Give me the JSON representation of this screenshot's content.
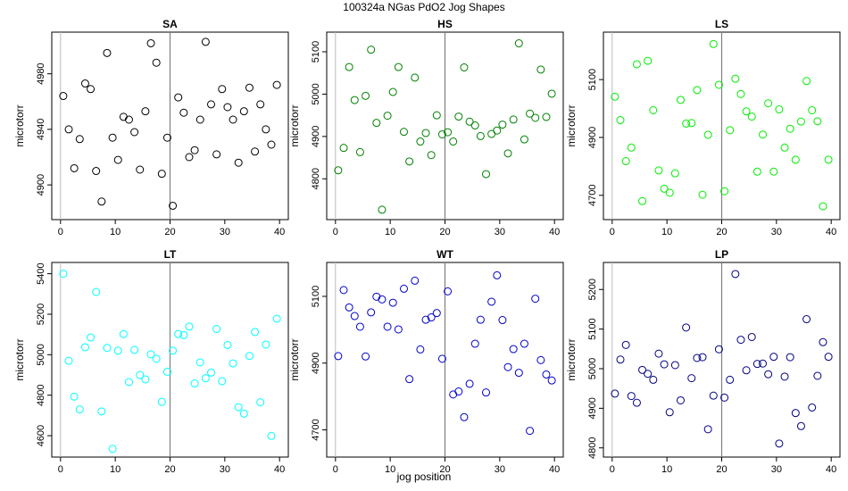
{
  "title": "100324a   NGas PdO2 Jog Shapes",
  "xlabel": "jog position",
  "colors": {
    "SA": "#000000",
    "HS": "#008000",
    "LS": "#00ee00",
    "LT": "#00ffff",
    "WT": "#0000cc",
    "LP": "#000080"
  },
  "chart_data": [
    {
      "type": "scatter",
      "title": "SA",
      "ylabel": "microtorr",
      "xlim": [
        0,
        40
      ],
      "ylim": [
        4880,
        5005
      ],
      "xticks": [
        "0",
        "10",
        "20",
        "30",
        "40"
      ],
      "yticks": [
        "4900",
        "4940",
        "4980"
      ],
      "yticks_values": [
        4900,
        4940,
        4980
      ],
      "vline": 20,
      "x": [
        0.5,
        1.5,
        2.5,
        3.5,
        4.5,
        5.5,
        6.5,
        7.5,
        8.5,
        9.5,
        10.5,
        11.5,
        12.5,
        13.5,
        14.5,
        15.5,
        16.5,
        17.5,
        18.5,
        19.5,
        20.5,
        21.5,
        22.5,
        23.5,
        24.5,
        25.5,
        26.5,
        27.5,
        28.5,
        29.5,
        30.5,
        31.5,
        32.5,
        33.5,
        34.5,
        35.5,
        36.5,
        37.5,
        38.5,
        39.5
      ],
      "y": [
        4964,
        4940,
        4912,
        4933,
        4973,
        4969,
        4910,
        4888,
        4995,
        4934,
        4918,
        4949,
        4947,
        4938,
        4911,
        4953,
        5002,
        4988,
        4908,
        4934,
        4885,
        4963,
        4952,
        4920,
        4925,
        4947,
        5003,
        4958,
        4922,
        4969,
        4956,
        4947,
        4916,
        4953,
        4970,
        4924,
        4958,
        4940,
        4929,
        4972
      ]
    },
    {
      "type": "scatter",
      "title": "HS",
      "ylabel": "microtorr",
      "xlim": [
        0,
        40
      ],
      "ylim": [
        4720,
        5130
      ],
      "xticks": [
        "0",
        "10",
        "20",
        "30",
        "40"
      ],
      "yticks": [
        "4800",
        "4900",
        "5000",
        "5100"
      ],
      "yticks_values": [
        4800,
        4900,
        5000,
        5100
      ],
      "vline": 20,
      "x": [
        0.5,
        1.5,
        2.5,
        3.5,
        4.5,
        5.5,
        6.5,
        7.5,
        8.5,
        9.5,
        10.5,
        11.5,
        12.5,
        13.5,
        14.5,
        15.5,
        16.5,
        17.5,
        18.5,
        19.5,
        20.5,
        21.5,
        22.5,
        23.5,
        24.5,
        25.5,
        26.5,
        27.5,
        28.5,
        29.5,
        30.5,
        31.5,
        32.5,
        33.5,
        34.5,
        35.5,
        36.5,
        37.5,
        38.5,
        39.5
      ],
      "y": [
        4820,
        4873,
        5064,
        4986,
        4863,
        4996,
        5105,
        4932,
        4727,
        4949,
        5005,
        5064,
        4911,
        4841,
        5039,
        4888,
        4908,
        4856,
        4950,
        4905,
        4910,
        4888,
        4947,
        5063,
        4935,
        4926,
        4901,
        4811,
        4906,
        4914,
        4928,
        4860,
        4940,
        5120,
        4893,
        4954,
        4944,
        5058,
        4946,
        5001
      ]
    },
    {
      "type": "scatter",
      "title": "LS",
      "ylabel": "microtorr",
      "xlim": [
        0,
        40
      ],
      "ylim": [
        4640,
        5240
      ],
      "xticks": [
        "0",
        "10",
        "20",
        "30",
        "40"
      ],
      "yticks": [
        "4700",
        "4900",
        "5100"
      ],
      "yticks_values": [
        4700,
        4900,
        5100
      ],
      "vline": 20,
      "x": [
        0.5,
        1.5,
        2.5,
        3.5,
        4.5,
        5.5,
        6.5,
        7.5,
        8.5,
        9.5,
        10.5,
        11.5,
        12.5,
        13.5,
        14.5,
        15.5,
        16.5,
        17.5,
        18.5,
        19.5,
        20.5,
        21.5,
        22.5,
        23.5,
        24.5,
        25.5,
        26.5,
        27.5,
        28.5,
        29.5,
        30.5,
        31.5,
        32.5,
        33.5,
        34.5,
        35.5,
        36.5,
        37.5,
        38.5,
        39.5
      ],
      "y": [
        5041,
        4960,
        4818,
        4865,
        5153,
        4680,
        5165,
        4994,
        4786,
        4723,
        4709,
        4776,
        5030,
        4948,
        4950,
        5064,
        4702,
        4909,
        5223,
        5082,
        4714,
        4925,
        5103,
        5050,
        4990,
        4972,
        4782,
        4910,
        5018,
        4782,
        4997,
        4865,
        4930,
        4823,
        4955,
        5095,
        4994,
        4956,
        4662,
        4823
      ]
    },
    {
      "type": "scatter",
      "title": "LT",
      "ylabel": "microtorr",
      "xlim": [
        0,
        40
      ],
      "ylim": [
        4530,
        5420
      ],
      "xticks": [
        "0",
        "10",
        "20",
        "30",
        "40"
      ],
      "yticks": [
        "4600",
        "4800",
        "5000",
        "5200",
        "5400"
      ],
      "yticks_values": [
        4600,
        4800,
        5000,
        5200,
        5400
      ],
      "vline": 20,
      "x": [
        0.5,
        1.5,
        2.5,
        3.5,
        4.5,
        5.5,
        6.5,
        7.5,
        8.5,
        9.5,
        10.5,
        11.5,
        12.5,
        13.5,
        14.5,
        15.5,
        16.5,
        17.5,
        18.5,
        19.5,
        20.5,
        21.5,
        22.5,
        23.5,
        24.5,
        25.5,
        26.5,
        27.5,
        28.5,
        29.5,
        30.5,
        31.5,
        32.5,
        33.5,
        34.5,
        35.5,
        36.5,
        37.5,
        38.5,
        39.5
      ],
      "y": [
        5400,
        4970,
        4793,
        4730,
        5037,
        5085,
        5310,
        4720,
        5034,
        4535,
        5020,
        5102,
        4865,
        5024,
        4900,
        4878,
        5002,
        4980,
        4767,
        4916,
        5020,
        5102,
        5097,
        5139,
        4858,
        4962,
        4884,
        4912,
        5127,
        4869,
        5048,
        4957,
        4741,
        4709,
        4994,
        5112,
        4765,
        5050,
        4599,
        5178
      ]
    },
    {
      "type": "scatter",
      "title": "WT",
      "ylabel": "microtorr",
      "xlim": [
        0,
        40
      ],
      "ylim": [
        4640,
        5180
      ],
      "xticks": [
        "0",
        "10",
        "20",
        "30",
        "40"
      ],
      "yticks": [
        "4700",
        "4900",
        "5100"
      ],
      "yticks_values": [
        4700,
        4900,
        5100
      ],
      "vline": 20,
      "x": [
        0.5,
        1.5,
        2.5,
        3.5,
        4.5,
        5.5,
        6.5,
        7.5,
        8.5,
        9.5,
        10.5,
        11.5,
        12.5,
        13.5,
        14.5,
        15.5,
        16.5,
        17.5,
        18.5,
        19.5,
        20.5,
        21.5,
        22.5,
        23.5,
        24.5,
        25.5,
        26.5,
        27.5,
        28.5,
        29.5,
        30.5,
        31.5,
        32.5,
        33.5,
        34.5,
        35.5,
        36.5,
        37.5,
        38.5,
        39.5
      ],
      "y": [
        4921,
        5119,
        5067,
        5041,
        5009,
        4920,
        5052,
        5099,
        5091,
        5009,
        5081,
        5001,
        5123,
        4852,
        5147,
        4941,
        5030,
        5037,
        5050,
        4913,
        5115,
        4806,
        4815,
        4738,
        4838,
        4958,
        5030,
        4812,
        5084,
        5163,
        5029,
        4888,
        4942,
        4871,
        4958,
        4697,
        5093,
        4909,
        4866,
        4848
      ]
    },
    {
      "type": "scatter",
      "title": "LP",
      "ylabel": "microtorr",
      "xlim": [
        0,
        40
      ],
      "ylim": [
        4795,
        5250
      ],
      "xticks": [
        "0",
        "10",
        "20",
        "30",
        "40"
      ],
      "yticks": [
        "4800",
        "4900",
        "5000",
        "5100",
        "5200"
      ],
      "yticks_values": [
        4800,
        4900,
        5000,
        5100,
        5200
      ],
      "vline": 20,
      "x": [
        0.5,
        1.5,
        2.5,
        3.5,
        4.5,
        5.5,
        6.5,
        7.5,
        8.5,
        9.5,
        10.5,
        11.5,
        12.5,
        13.5,
        14.5,
        15.5,
        16.5,
        17.5,
        18.5,
        19.5,
        20.5,
        21.5,
        22.5,
        23.5,
        24.5,
        25.5,
        26.5,
        27.5,
        28.5,
        29.5,
        30.5,
        31.5,
        32.5,
        33.5,
        34.5,
        35.5,
        36.5,
        37.5,
        38.5,
        39.5
      ],
      "y": [
        4937,
        5023,
        5060,
        4931,
        4914,
        4997,
        4987,
        4972,
        5038,
        5011,
        4890,
        5009,
        4920,
        5104,
        4976,
        5027,
        5029,
        4847,
        4932,
        5049,
        4927,
        4972,
        5239,
        5073,
        4996,
        5080,
        5012,
        5013,
        4986,
        5030,
        4811,
        4980,
        5029,
        4888,
        4855,
        5125,
        4902,
        4982,
        5067,
        5030
      ]
    }
  ]
}
